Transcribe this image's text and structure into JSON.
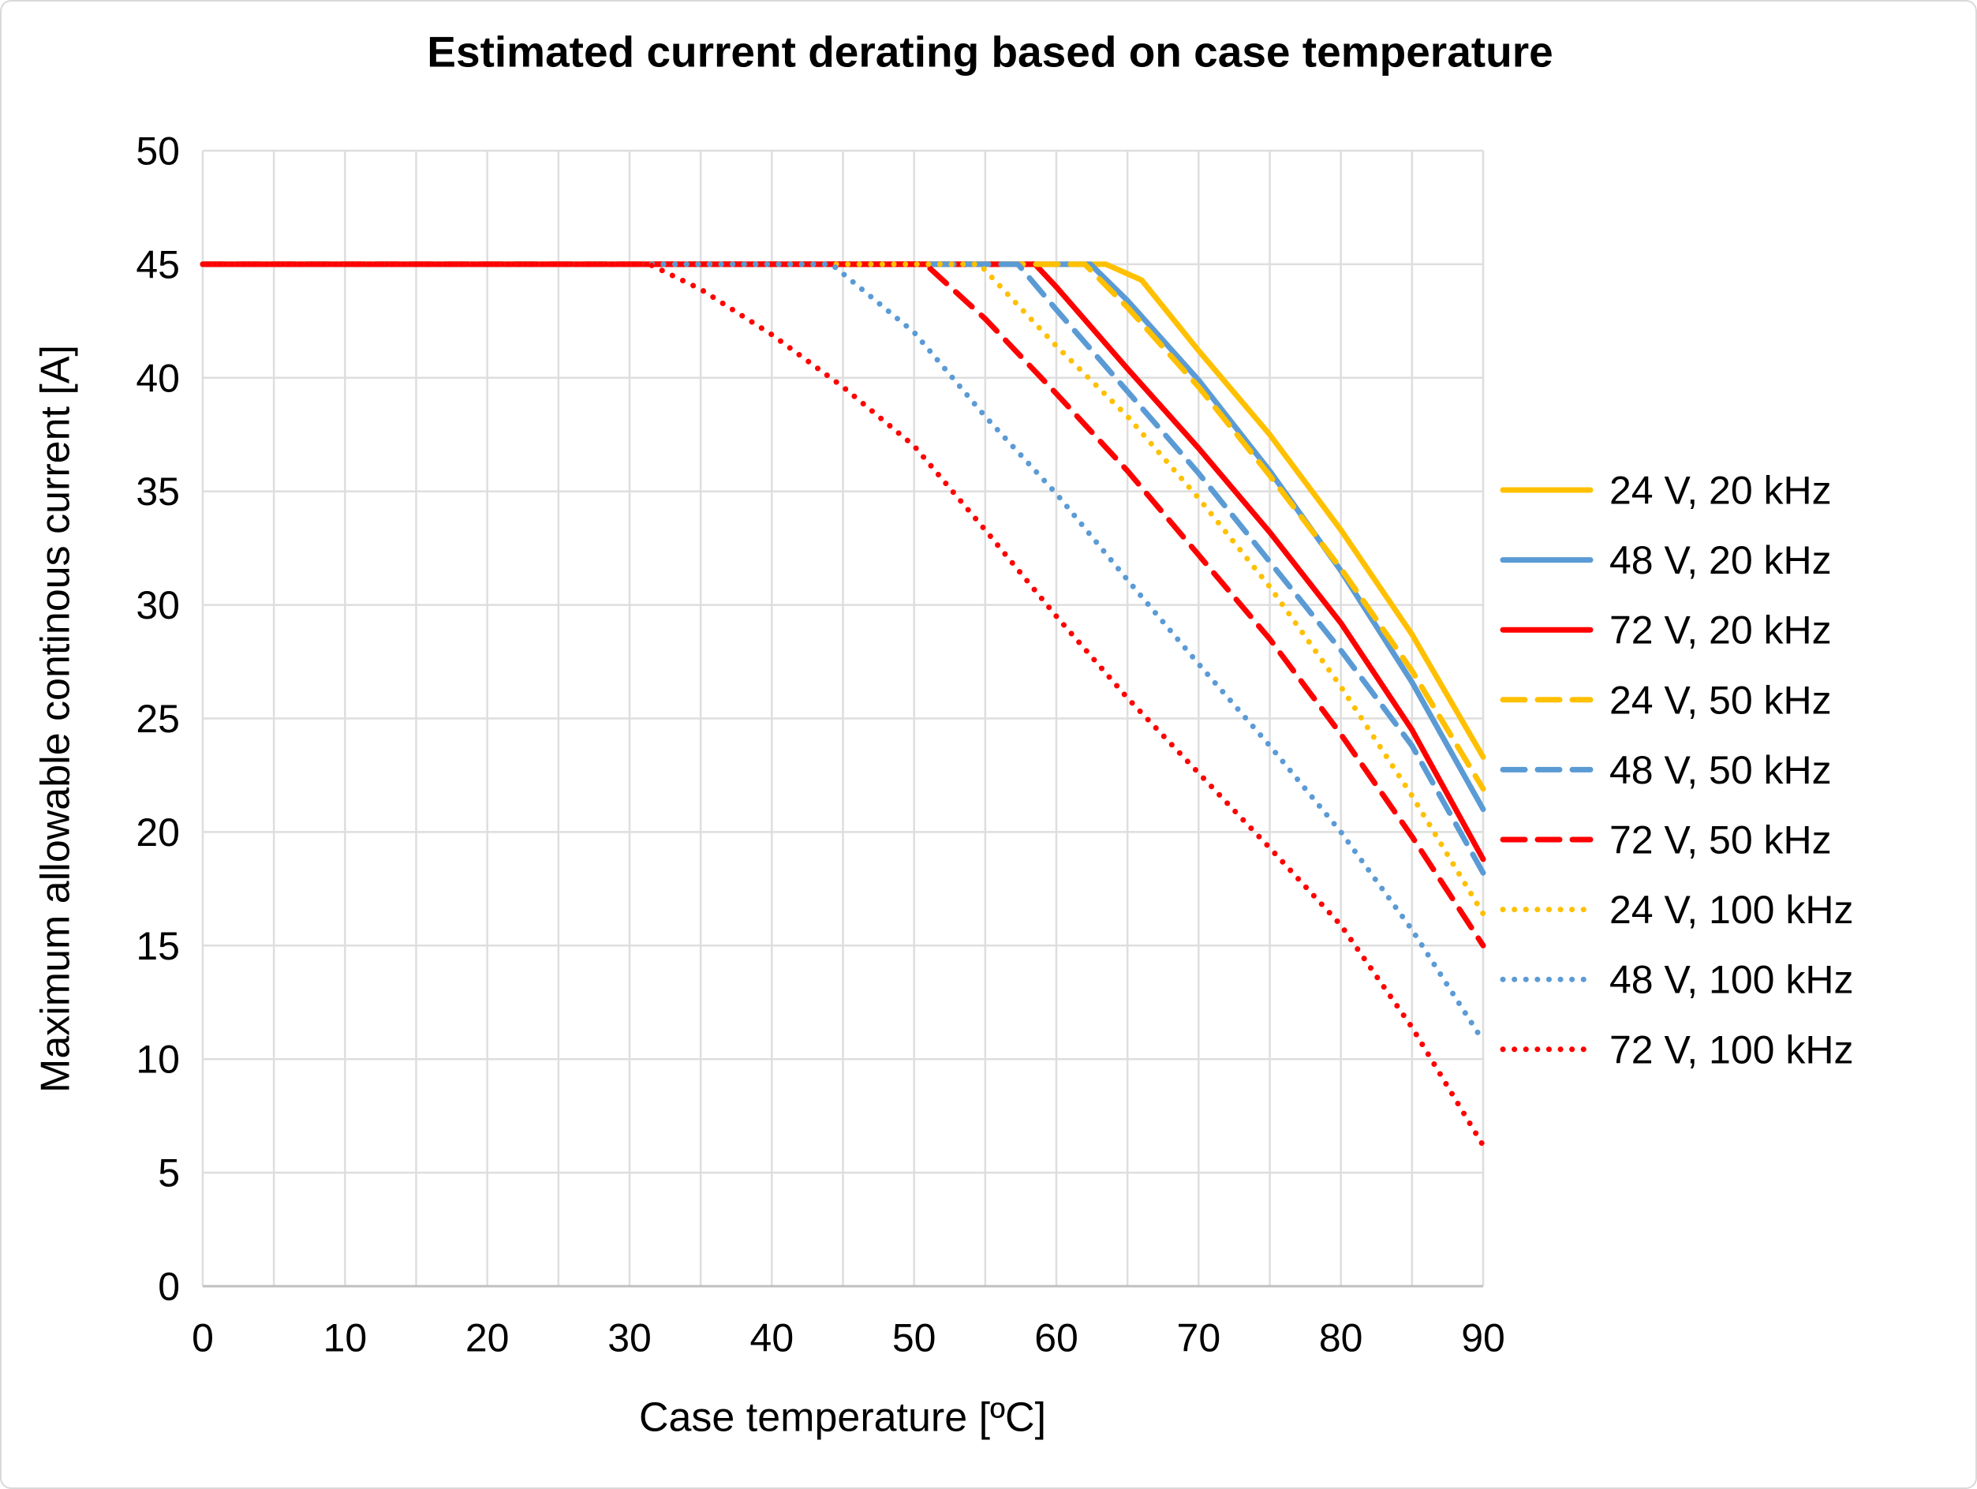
{
  "chart_data": {
    "type": "line",
    "title": "Estimated current derating based on case temperature",
    "xlabel": "Case temperature [ºC]",
    "ylabel": "Maximum allowable continous current [A]",
    "xlim": [
      0,
      90
    ],
    "ylim": [
      0,
      50
    ],
    "x_tick_labels": [
      0,
      10,
      20,
      30,
      40,
      50,
      60,
      70,
      80,
      90
    ],
    "y_tick_labels": [
      0,
      5,
      10,
      15,
      20,
      25,
      30,
      35,
      40,
      45,
      50
    ],
    "grid": true,
    "grid_step_x": 5,
    "grid_step_y": 5,
    "legend_position": "right",
    "colors": {
      "yellow": "#FFC000",
      "blue": "#5B9BD5",
      "red": "#FF0000",
      "gridline": "#DEDEDE",
      "axis_line": "#BFBFBF"
    },
    "series": [
      {
        "name": "24 V, 20 kHz",
        "color": "#FFC000",
        "style": "solid",
        "points": [
          [
            0,
            45
          ],
          [
            63.5,
            45
          ],
          [
            66,
            44.3
          ],
          [
            70,
            41.2
          ],
          [
            75,
            37.5
          ],
          [
            80,
            33.3
          ],
          [
            85,
            28.7
          ],
          [
            90,
            23.3
          ]
        ]
      },
      {
        "name": "48 V, 20 kHz",
        "color": "#5B9BD5",
        "style": "solid",
        "points": [
          [
            0,
            45
          ],
          [
            62.4,
            45
          ],
          [
            65,
            43.4
          ],
          [
            70,
            39.9
          ],
          [
            75,
            35.9
          ],
          [
            80,
            31.5
          ],
          [
            85,
            26.6
          ],
          [
            90,
            21.0
          ]
        ]
      },
      {
        "name": "72 V, 20 kHz",
        "color": "#FF0000",
        "style": "solid",
        "points": [
          [
            0,
            45
          ],
          [
            58.5,
            45
          ],
          [
            60,
            44.0
          ],
          [
            65,
            40.4
          ],
          [
            70,
            36.9
          ],
          [
            75,
            33.2
          ],
          [
            80,
            29.2
          ],
          [
            85,
            24.5
          ],
          [
            90,
            18.8
          ]
        ]
      },
      {
        "name": "24 V, 50 kHz",
        "color": "#FFC000",
        "style": "dashed",
        "points": [
          [
            0,
            45
          ],
          [
            62,
            45
          ],
          [
            65,
            43.1
          ],
          [
            70,
            39.6
          ],
          [
            75,
            35.7
          ],
          [
            80,
            31.6
          ],
          [
            85,
            27.1
          ],
          [
            90,
            21.9
          ]
        ]
      },
      {
        "name": "48 V, 50 kHz",
        "color": "#5B9BD5",
        "style": "dashed",
        "points": [
          [
            0,
            45
          ],
          [
            57.3,
            45
          ],
          [
            60,
            43.0
          ],
          [
            65,
            39.4
          ],
          [
            70,
            35.8
          ],
          [
            75,
            31.9
          ],
          [
            80,
            28.0
          ],
          [
            85,
            23.8
          ],
          [
            90,
            18.2
          ]
        ]
      },
      {
        "name": "72 V, 50 kHz",
        "color": "#FF0000",
        "style": "dashed",
        "points": [
          [
            0,
            45
          ],
          [
            50.8,
            45
          ],
          [
            55,
            42.6
          ],
          [
            60,
            39.3
          ],
          [
            65,
            35.9
          ],
          [
            70,
            32.2
          ],
          [
            75,
            28.5
          ],
          [
            80,
            24.3
          ],
          [
            85,
            19.8
          ],
          [
            90,
            15.0
          ]
        ]
      },
      {
        "name": "24 V, 100 kHz",
        "color": "#FFC000",
        "style": "dotted",
        "points": [
          [
            0,
            45
          ],
          [
            54.6,
            45
          ],
          [
            60,
            41.4
          ],
          [
            65,
            38.3
          ],
          [
            70,
            34.7
          ],
          [
            75,
            30.8
          ],
          [
            80,
            26.4
          ],
          [
            85,
            21.6
          ],
          [
            90,
            16.4
          ]
        ]
      },
      {
        "name": "48 V, 100 kHz",
        "color": "#5B9BD5",
        "style": "dotted",
        "points": [
          [
            0,
            45
          ],
          [
            44.2,
            45
          ],
          [
            50,
            42.0
          ],
          [
            55,
            38.3
          ],
          [
            60,
            34.9
          ],
          [
            65,
            31.1
          ],
          [
            70,
            27.4
          ],
          [
            75,
            23.8
          ],
          [
            80,
            20.0
          ],
          [
            85,
            15.7
          ],
          [
            90,
            10.8
          ]
        ]
      },
      {
        "name": "72 V, 100 kHz",
        "color": "#FF0000",
        "style": "dotted",
        "points": [
          [
            0,
            45
          ],
          [
            31.4,
            45
          ],
          [
            35,
            43.9
          ],
          [
            40,
            41.9
          ],
          [
            45,
            39.6
          ],
          [
            50,
            37.0
          ],
          [
            55,
            33.3
          ],
          [
            60,
            29.5
          ],
          [
            65,
            25.9
          ],
          [
            70,
            22.6
          ],
          [
            75,
            19.3
          ],
          [
            80,
            15.9
          ],
          [
            85,
            11.4
          ],
          [
            90,
            6.2
          ]
        ]
      }
    ]
  }
}
